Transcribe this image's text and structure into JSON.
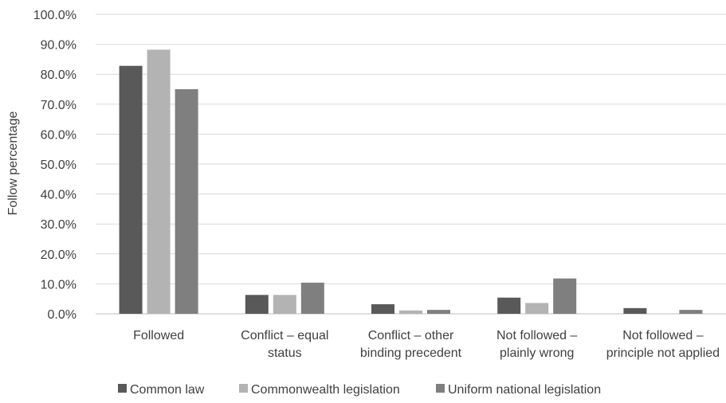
{
  "chart_data": {
    "type": "bar",
    "ylabel": "Follow percentage",
    "xlabel": "",
    "ylim": [
      0,
      100
    ],
    "ytick_step": 10,
    "ytick_labels": [
      "0.0%",
      "10.0%",
      "20.0%",
      "30.0%",
      "40.0%",
      "50.0%",
      "60.0%",
      "70.0%",
      "80.0%",
      "90.0%",
      "100.0%"
    ],
    "grid": true,
    "legend_position": "bottom",
    "categories": [
      [
        "Followed"
      ],
      [
        "Conflict – equal",
        "status"
      ],
      [
        "Conflict – other",
        "binding precedent"
      ],
      [
        "Not followed –",
        "plainly wrong"
      ],
      [
        "Not followed –",
        "principle not applied"
      ]
    ],
    "series": [
      {
        "name": "Common law",
        "color": "#595959",
        "values": [
          82.8,
          6.3,
          3.2,
          5.4,
          1.9
        ]
      },
      {
        "name": "Commonwealth legislation",
        "color": "#b3b3b3",
        "values": [
          88.2,
          6.3,
          1.1,
          3.6,
          0.0
        ]
      },
      {
        "name": "Uniform national legislation",
        "color": "#7f7f7f",
        "values": [
          75.0,
          10.4,
          1.3,
          11.8,
          1.3
        ]
      }
    ]
  }
}
